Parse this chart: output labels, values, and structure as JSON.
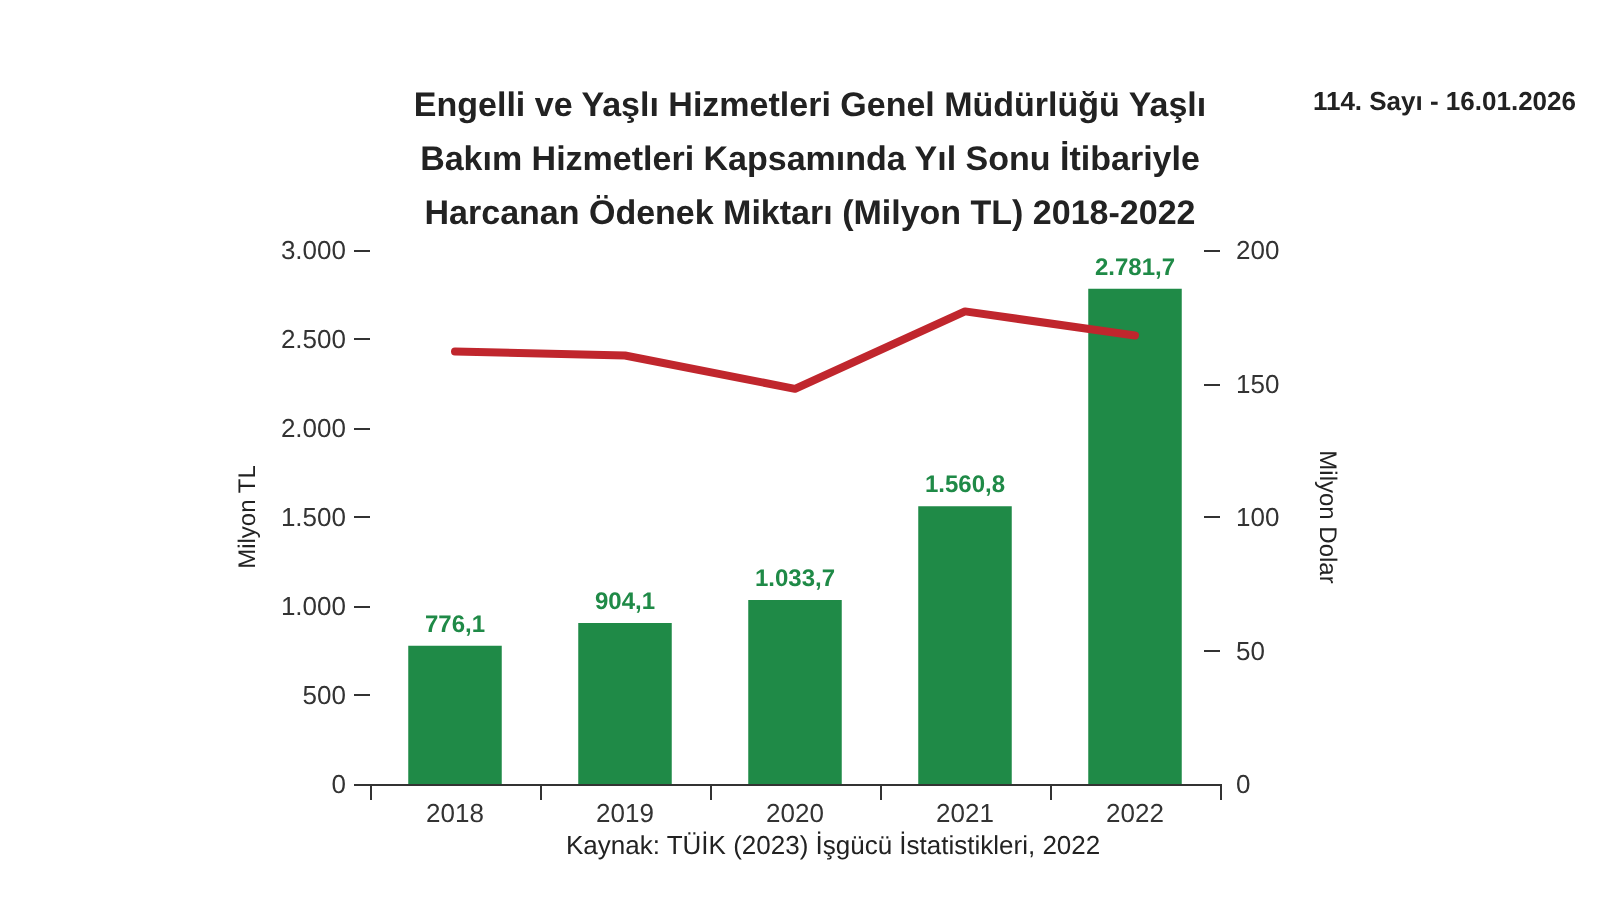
{
  "chart_data": {
    "type": "bar",
    "title": "Engelli ve Yaşlı Hizmetleri Genel Müdürlüğü Yaşlı\nBakım Hizmetleri Kapsamında Yıl Sonu İtibariyle\nHarcanan Ödenek Miktarı (Milyon TL) 2018-2022",
    "ylabel": "Milyon TL",
    "y2label": "Milyon Dolar",
    "annotations": [
      "Kaynak: TÜİK (2023) İşgücü İstatistikleri, 2022",
      "114. Sayı - 16.01.2026"
    ],
    "categories": [
      "2018",
      "2019",
      "2020",
      "2021",
      "2022"
    ],
    "series": [
      {
        "color": "#1f8a47",
        "values": [
          776.1,
          904.1,
          1033.7,
          1560.8,
          2781.7
        ],
        "value_labels": [
          "776,1",
          "904,1",
          "1.033,7",
          "1.560,8",
          "2.781,7"
        ]
      },
      {
        "type": "line",
        "axis": "y2",
        "color": "#c0262d",
        "values": [
          162,
          160.5,
          148,
          177,
          168
        ]
      }
    ],
    "ylim": [
      0,
      3000
    ],
    "yticks": [
      {
        "value": 0,
        "label": "0"
      },
      {
        "value": 500,
        "label": "500"
      },
      {
        "value": 1000,
        "label": "1.000"
      },
      {
        "value": 1500,
        "label": "1.500"
      },
      {
        "value": 2000,
        "label": "2.000"
      },
      {
        "value": 2500,
        "label": "2.500"
      },
      {
        "value": 3000,
        "label": "3.000"
      }
    ],
    "y2lim": [
      0,
      200
    ],
    "y2ticks": [
      0,
      50,
      100,
      150,
      200
    ],
    "grid": false,
    "marker": "none",
    "line_style": "solid"
  }
}
